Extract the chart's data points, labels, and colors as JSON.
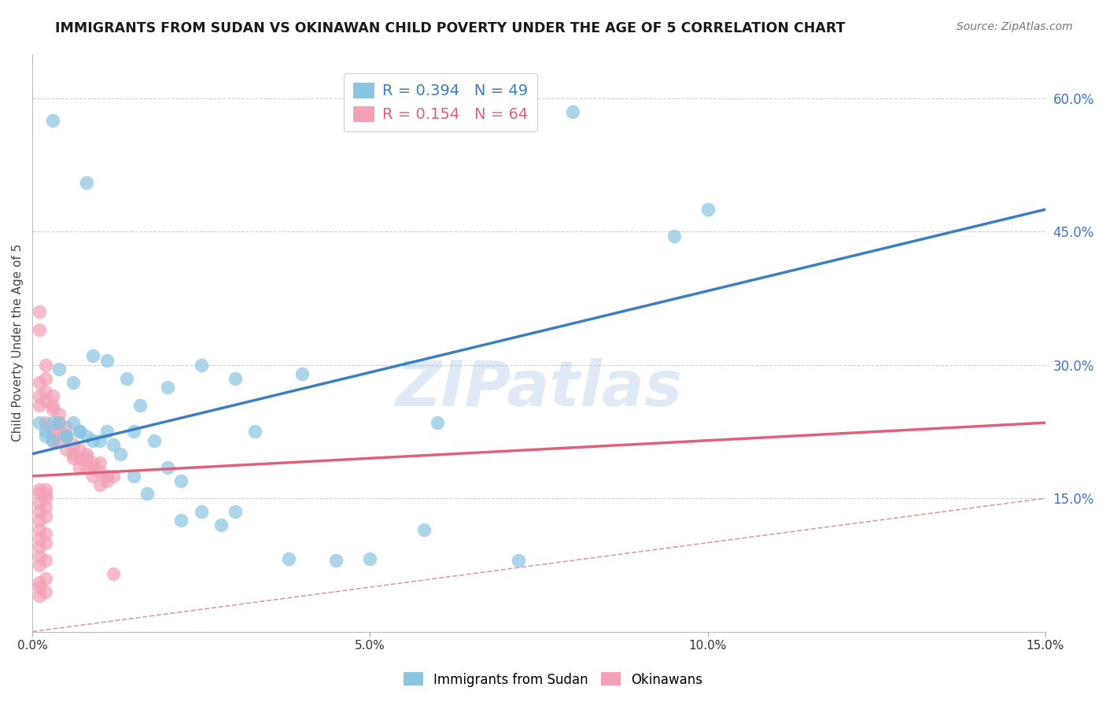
{
  "title": "IMMIGRANTS FROM SUDAN VS OKINAWAN CHILD POVERTY UNDER THE AGE OF 5 CORRELATION CHART",
  "source": "Source: ZipAtlas.com",
  "ylabel": "Child Poverty Under the Age of 5",
  "xlim": [
    0,
    0.15
  ],
  "ylim": [
    0,
    0.65
  ],
  "xticks": [
    0.0,
    0.05,
    0.1,
    0.15
  ],
  "xtick_labels": [
    "0.0%",
    "5.0%",
    "10.0%",
    "15.0%"
  ],
  "ytick_labels_right": [
    "15.0%",
    "30.0%",
    "45.0%",
    "60.0%"
  ],
  "yticks_right": [
    0.15,
    0.3,
    0.45,
    0.6
  ],
  "legend_r1": "R = 0.394",
  "legend_n1": "N = 49",
  "legend_r2": "R = 0.154",
  "legend_n2": "N = 64",
  "color_blue": "#89c4e1",
  "color_pink": "#f4a0b5",
  "color_blue_line": "#3a7fc1",
  "color_pink_line": "#e0607e",
  "color_diag": "#d4a0a0",
  "color_grid": "#d0d0d0",
  "color_right_axis": "#4472c4",
  "watermark": "ZIPatlas",
  "blue_line_x0": 0.0,
  "blue_line_y0": 0.2,
  "blue_line_x1": 0.15,
  "blue_line_y1": 0.475,
  "pink_line_x0": 0.0,
  "pink_line_y0": 0.175,
  "pink_line_x1": 0.15,
  "pink_line_y1": 0.235,
  "blue_scatter_x": [
    0.003,
    0.008,
    0.004,
    0.006,
    0.009,
    0.011,
    0.014,
    0.016,
    0.02,
    0.025,
    0.03,
    0.04,
    0.06,
    0.08,
    0.002,
    0.003,
    0.005,
    0.007,
    0.009,
    0.011,
    0.013,
    0.015,
    0.017,
    0.02,
    0.022,
    0.025,
    0.028,
    0.033,
    0.045,
    0.058,
    0.072,
    0.095,
    0.1,
    0.001,
    0.002,
    0.003,
    0.004,
    0.005,
    0.006,
    0.007,
    0.008,
    0.01,
    0.012,
    0.015,
    0.018,
    0.022,
    0.03,
    0.038,
    0.05
  ],
  "blue_scatter_y": [
    0.575,
    0.505,
    0.295,
    0.28,
    0.31,
    0.305,
    0.285,
    0.255,
    0.275,
    0.3,
    0.285,
    0.29,
    0.235,
    0.585,
    0.22,
    0.215,
    0.22,
    0.225,
    0.215,
    0.225,
    0.2,
    0.175,
    0.155,
    0.185,
    0.125,
    0.135,
    0.12,
    0.225,
    0.08,
    0.115,
    0.08,
    0.445,
    0.475,
    0.235,
    0.225,
    0.235,
    0.235,
    0.22,
    0.235,
    0.225,
    0.22,
    0.215,
    0.21,
    0.225,
    0.215,
    0.17,
    0.135,
    0.082,
    0.082
  ],
  "pink_scatter_x": [
    0.001,
    0.001,
    0.002,
    0.001,
    0.002,
    0.001,
    0.002,
    0.001,
    0.002,
    0.003,
    0.003,
    0.002,
    0.003,
    0.004,
    0.003,
    0.004,
    0.003,
    0.004,
    0.005,
    0.004,
    0.005,
    0.005,
    0.006,
    0.006,
    0.007,
    0.006,
    0.007,
    0.008,
    0.007,
    0.008,
    0.009,
    0.008,
    0.009,
    0.01,
    0.009,
    0.01,
    0.011,
    0.01,
    0.011,
    0.012,
    0.001,
    0.001,
    0.002,
    0.002,
    0.001,
    0.002,
    0.001,
    0.002,
    0.001,
    0.002,
    0.001,
    0.001,
    0.002,
    0.001,
    0.002,
    0.001,
    0.001,
    0.002,
    0.012,
    0.001,
    0.002,
    0.001,
    0.001,
    0.002
  ],
  "pink_scatter_y": [
    0.36,
    0.34,
    0.3,
    0.28,
    0.285,
    0.265,
    0.27,
    0.255,
    0.26,
    0.265,
    0.255,
    0.235,
    0.25,
    0.245,
    0.225,
    0.235,
    0.215,
    0.225,
    0.23,
    0.215,
    0.22,
    0.205,
    0.21,
    0.2,
    0.205,
    0.195,
    0.195,
    0.2,
    0.185,
    0.195,
    0.19,
    0.185,
    0.185,
    0.19,
    0.175,
    0.18,
    0.175,
    0.165,
    0.17,
    0.175,
    0.16,
    0.155,
    0.16,
    0.155,
    0.145,
    0.15,
    0.135,
    0.14,
    0.125,
    0.13,
    0.115,
    0.105,
    0.11,
    0.095,
    0.1,
    0.085,
    0.075,
    0.08,
    0.065,
    0.055,
    0.06,
    0.05,
    0.04,
    0.045
  ]
}
